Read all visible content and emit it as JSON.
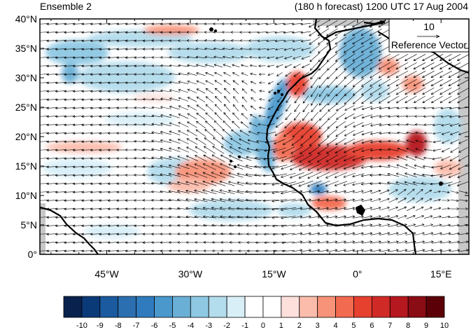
{
  "header": {
    "title_left": "Ensemble 2",
    "title_right": "(180 h forecast) 1200 UTC 17 Aug 2004"
  },
  "reference_vector": {
    "value": "10",
    "label": "Reference Vector"
  },
  "axes": {
    "lat_labels": [
      "40°N",
      "35°N",
      "30°N",
      "25°N",
      "20°N",
      "15°N",
      "10°N",
      "5°N",
      "0°"
    ],
    "lat_values": [
      40,
      35,
      30,
      25,
      20,
      15,
      10,
      5,
      0
    ],
    "lon_labels": [
      "45°W",
      "30°W",
      "15°W",
      "0°",
      "15°E"
    ],
    "lon_values": [
      -45,
      -30,
      -15,
      0,
      15
    ],
    "lon_range": [
      -57,
      20
    ],
    "lat_range": [
      0,
      40
    ]
  },
  "colorbar": {
    "labels": [
      "-10",
      "-9",
      "-8",
      "-7",
      "-6",
      "-5",
      "-4",
      "-3",
      "-2",
      "-1",
      "0",
      "1",
      "2",
      "3",
      "4",
      "5",
      "6",
      "7",
      "8",
      "9",
      "10"
    ],
    "colors": [
      "#08224d",
      "#0b3a78",
      "#1b5a9e",
      "#2c6fb0",
      "#2f7bbd",
      "#4a98cc",
      "#6aafd6",
      "#8ec8e3",
      "#b3dcec",
      "#d8eff8",
      "#ffffff",
      "#ffffff",
      "#fde0dc",
      "#fbbcab",
      "#f79379",
      "#f26a4f",
      "#e6402f",
      "#d02a27",
      "#b5181e",
      "#8a0c14",
      "#5c0008"
    ]
  },
  "colors": {
    "coast": "#000000",
    "land_gray": "#c8c8c8",
    "vector": "#000000"
  }
}
